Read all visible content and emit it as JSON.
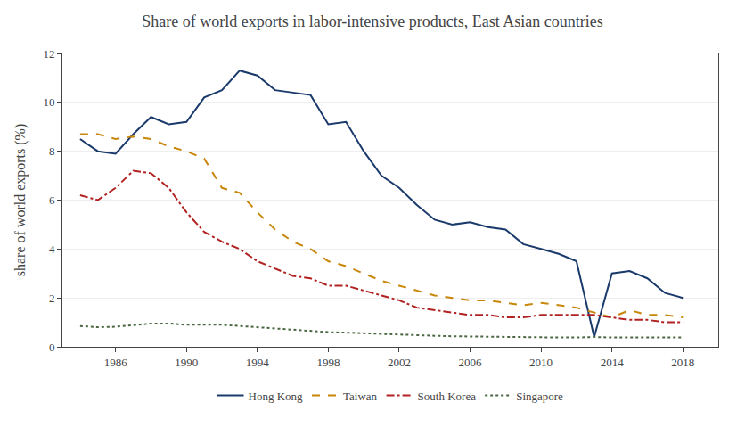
{
  "chart_data": {
    "type": "line",
    "title": "Share of world exports in labor-intensive products, East Asian countries",
    "ylabel": "share of world exports (%)",
    "x": [
      1984,
      1985,
      1986,
      1987,
      1988,
      1989,
      1990,
      1991,
      1992,
      1993,
      1994,
      1995,
      1996,
      1997,
      1998,
      1999,
      2000,
      2001,
      2002,
      2003,
      2004,
      2005,
      2006,
      2007,
      2008,
      2009,
      2010,
      2011,
      2012,
      2013,
      2014,
      2015,
      2016,
      2017,
      2018
    ],
    "series": [
      {
        "name": "Hong Kong",
        "color": "#1a3a6b",
        "line_style": "solid",
        "values": [
          8.5,
          8.0,
          7.9,
          8.7,
          9.4,
          9.1,
          9.2,
          10.2,
          10.5,
          11.3,
          11.1,
          10.5,
          10.4,
          10.3,
          9.1,
          9.2,
          8.0,
          7.0,
          6.5,
          5.8,
          5.2,
          5.0,
          5.1,
          4.9,
          4.8,
          4.2,
          4.0,
          3.8,
          3.5,
          0.4,
          3.0,
          3.1,
          2.8,
          2.2,
          2.0
        ]
      },
      {
        "name": "Taiwan",
        "color": "#c8860a",
        "line_style": "dashed",
        "values": [
          8.7,
          8.7,
          8.5,
          8.6,
          8.5,
          8.2,
          8.0,
          7.7,
          6.5,
          6.3,
          5.5,
          4.8,
          4.3,
          4.0,
          3.5,
          3.3,
          3.0,
          2.7,
          2.5,
          2.3,
          2.1,
          2.0,
          1.9,
          1.9,
          1.8,
          1.7,
          1.8,
          1.7,
          1.6,
          1.4,
          1.2,
          1.5,
          1.3,
          1.3,
          1.2
        ]
      },
      {
        "name": "South Korea",
        "color": "#b22222",
        "line_style": "dashdot",
        "values": [
          6.2,
          6.0,
          6.5,
          7.2,
          7.1,
          6.5,
          5.5,
          4.7,
          4.3,
          4.0,
          3.5,
          3.2,
          2.9,
          2.8,
          2.5,
          2.5,
          2.3,
          2.1,
          1.9,
          1.6,
          1.5,
          1.4,
          1.3,
          1.3,
          1.2,
          1.2,
          1.3,
          1.3,
          1.3,
          1.3,
          1.2,
          1.1,
          1.1,
          1.0,
          1.0
        ]
      },
      {
        "name": "Singapore",
        "color": "#4a6741",
        "line_style": "dotted",
        "values": [
          0.85,
          0.8,
          0.82,
          0.88,
          0.95,
          0.95,
          0.9,
          0.9,
          0.9,
          0.85,
          0.8,
          0.75,
          0.7,
          0.65,
          0.6,
          0.58,
          0.55,
          0.52,
          0.5,
          0.48,
          0.45,
          0.43,
          0.42,
          0.4,
          0.4,
          0.38,
          0.38,
          0.38,
          0.38,
          0.4,
          0.38,
          0.38,
          0.38,
          0.38,
          0.38
        ]
      }
    ],
    "xlim": [
      1983,
      2020
    ],
    "ylim": [
      0,
      12
    ],
    "xticks": [
      1986,
      1990,
      1994,
      1998,
      2002,
      2006,
      2010,
      2014,
      2018
    ],
    "yticks": [
      0,
      2,
      4,
      6,
      8,
      10,
      12
    ],
    "grid": "y",
    "legend": "bottom"
  }
}
